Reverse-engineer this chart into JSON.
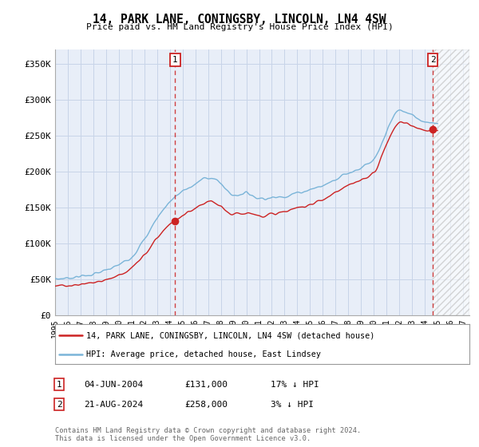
{
  "title": "14, PARK LANE, CONINGSBY, LINCOLN, LN4 4SW",
  "subtitle": "Price paid vs. HM Land Registry's House Price Index (HPI)",
  "ylabel_ticks": [
    "£0",
    "£50K",
    "£100K",
    "£150K",
    "£200K",
    "£250K",
    "£300K",
    "£350K"
  ],
  "ytick_values": [
    0,
    50000,
    100000,
    150000,
    200000,
    250000,
    300000,
    350000
  ],
  "ylim": [
    0,
    370000
  ],
  "xlim_start": 1995.0,
  "xlim_end": 2027.5,
  "hpi_color": "#7ab4d8",
  "price_color": "#cc2222",
  "sale1_x": 2004.42,
  "sale1_y": 131000,
  "sale1_label": "1",
  "sale2_x": 2024.63,
  "sale2_y": 258000,
  "sale2_label": "2",
  "legend_line1": "14, PARK LANE, CONINGSBY, LINCOLN, LN4 4SW (detached house)",
  "legend_line2": "HPI: Average price, detached house, East Lindsey",
  "note1_label": "1",
  "note1_date": "04-JUN-2004",
  "note1_price": "£131,000",
  "note1_hpi": "17% ↓ HPI",
  "note2_label": "2",
  "note2_date": "21-AUG-2024",
  "note2_price": "£258,000",
  "note2_hpi": "3% ↓ HPI",
  "footer": "Contains HM Land Registry data © Crown copyright and database right 2024.\nThis data is licensed under the Open Government Licence v3.0.",
  "background_color": "#e8eef8",
  "grid_color": "#c8d4e8"
}
